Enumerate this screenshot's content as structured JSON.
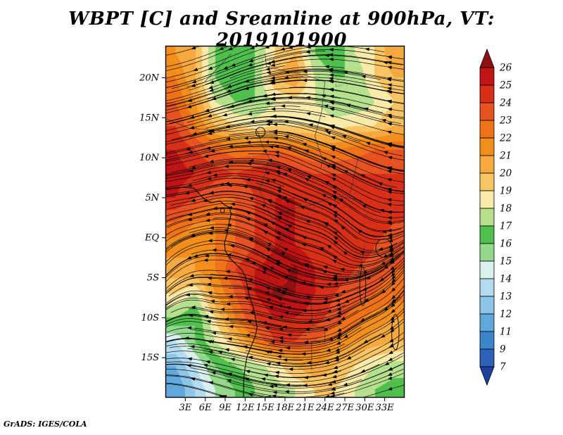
{
  "title": "WBPT [C] and Sreamline at 900hPa, VT: 2019101900",
  "credit": "GrADS: IGES/COLA",
  "chart_data": {
    "type": "heatmap",
    "title": "WBPT [C] and Sreamline at 900hPa, VT: 2019101900",
    "variable": "WBPT",
    "units": "C",
    "pressure_level": "900hPa",
    "valid_time": "2019101900",
    "lon_range": [
      0,
      36
    ],
    "lat_range": [
      -20,
      24
    ],
    "x_ticks": {
      "labels": [
        "3E",
        "6E",
        "9E",
        "12E",
        "15E",
        "18E",
        "21E",
        "24E",
        "27E",
        "30E",
        "33E"
      ],
      "lons": [
        3,
        6,
        9,
        12,
        15,
        18,
        21,
        24,
        27,
        30,
        33
      ]
    },
    "y_ticks": {
      "labels": [
        "20N",
        "15N",
        "10N",
        "5N",
        "EQ",
        "5S",
        "10S",
        "15S"
      ],
      "lats": [
        20,
        15,
        10,
        5,
        0,
        -5,
        -10,
        -15
      ]
    },
    "colorbar": {
      "levels": [
        7,
        9,
        11,
        12,
        13,
        14,
        15,
        16,
        17,
        18,
        19,
        20,
        21,
        22,
        23,
        24,
        25,
        26
      ],
      "colors": [
        "#1e3f9e",
        "#2c62b8",
        "#3c86cc",
        "#60a8dc",
        "#8ec6e8",
        "#b3dcf0",
        "#d9f0ee",
        "#93d88b",
        "#4fbf4d",
        "#b5e08e",
        "#f8eaa9",
        "#f9c464",
        "#f6a93e",
        "#f28e1c",
        "#ef7218",
        "#e65221",
        "#d83018",
        "#c01414",
        "#8f1010"
      ]
    },
    "field_grid": {
      "lon_centers": [
        1.5,
        4.5,
        7.5,
        10.5,
        13.5,
        16.5,
        19.5,
        22.5,
        25.5,
        28.5,
        31.5,
        34.5
      ],
      "lat_centers": [
        23,
        20,
        17,
        14,
        11,
        8,
        5,
        2,
        -1,
        -4,
        -7,
        -10,
        -13,
        -16,
        -19
      ],
      "values": [
        [
          21,
          20,
          17,
          16,
          17,
          19,
          20,
          17,
          16,
          18,
          19,
          21
        ],
        [
          22,
          20,
          17,
          16,
          17,
          20,
          21,
          18,
          17,
          17,
          19,
          20
        ],
        [
          23,
          21,
          18,
          17,
          17,
          18,
          18.5,
          18,
          17,
          17,
          18,
          19
        ],
        [
          24,
          22,
          20,
          19,
          18.5,
          19,
          19,
          19,
          18.5,
          19,
          19,
          20
        ],
        [
          25,
          24,
          23,
          22.5,
          22.5,
          23,
          22.5,
          22,
          22,
          22.5,
          23,
          23
        ],
        [
          25.5,
          25,
          24.5,
          24,
          24.5,
          25,
          24.5,
          24,
          24,
          24,
          24,
          24
        ],
        [
          25,
          24,
          23,
          23,
          24,
          25,
          25,
          24.5,
          24.5,
          25,
          24.5,
          24
        ],
        [
          23,
          22,
          22,
          23,
          24,
          25,
          25,
          25,
          25,
          25,
          24.5,
          24
        ],
        [
          21.5,
          21,
          22,
          23,
          24,
          25,
          25,
          24.5,
          24.5,
          25,
          24,
          23.5
        ],
        [
          20.5,
          21,
          22,
          24,
          25,
          25.5,
          26.2,
          25,
          24.5,
          24,
          23.5,
          23
        ],
        [
          19,
          18,
          21,
          23,
          25,
          26.2,
          26,
          25,
          24,
          23.5,
          23,
          22.5
        ],
        [
          17,
          16,
          19,
          22,
          24,
          25,
          25,
          24.5,
          23.5,
          22.5,
          21.5,
          21
        ],
        [
          14,
          16,
          18,
          19.5,
          22,
          24,
          24,
          23,
          22,
          21,
          20.5,
          20
        ],
        [
          12,
          14,
          16,
          17,
          17.5,
          18.5,
          20,
          21,
          20,
          19,
          18,
          17.5
        ],
        [
          11,
          13,
          15,
          16,
          17,
          17.5,
          18,
          19,
          19,
          18,
          17,
          16.5
        ]
      ]
    },
    "streamlines": {
      "seeds_x": 12,
      "seeds_y": 16,
      "step": 0.0035,
      "steps": 130,
      "vortices": [
        [
          0.68,
          0.52,
          2.0,
          0.015
        ],
        [
          0.48,
          0.28,
          1.2,
          0.008
        ],
        [
          0.22,
          0.74,
          -1.6,
          0.012
        ],
        [
          0.82,
          0.8,
          1.5,
          0.01
        ],
        [
          0.34,
          0.1,
          0.9,
          0.006
        ],
        [
          0.12,
          0.42,
          -1.0,
          0.01
        ]
      ]
    },
    "coastline": [
      [
        0,
        6.1
      ],
      [
        1.2,
        6.2
      ],
      [
        2.8,
        6.3
      ],
      [
        4.3,
        6.2
      ],
      [
        5.2,
        5.4
      ],
      [
        6.0,
        4.7
      ],
      [
        7.0,
        4.4
      ],
      [
        8.2,
        4.6
      ],
      [
        8.9,
        4.1
      ],
      [
        9.6,
        3.8
      ],
      [
        9.9,
        3.0
      ],
      [
        9.5,
        1.6
      ],
      [
        9.3,
        0.5
      ],
      [
        8.9,
        -0.6
      ],
      [
        9.0,
        -1.6
      ],
      [
        9.6,
        -2.5
      ],
      [
        10.6,
        -3.3
      ],
      [
        11.5,
        -4.0
      ],
      [
        12.1,
        -5.0
      ],
      [
        12.3,
        -6.0
      ],
      [
        12.6,
        -7.2
      ],
      [
        13.2,
        -8.6
      ],
      [
        13.5,
        -9.8
      ],
      [
        13.8,
        -11.2
      ],
      [
        13.5,
        -12.4
      ],
      [
        12.9,
        -13.6
      ],
      [
        12.3,
        -14.8
      ],
      [
        12.0,
        -16.2
      ],
      [
        11.8,
        -17.6
      ],
      [
        11.75,
        -20
      ]
    ],
    "borders": [
      [
        [
          0,
          14.9
        ],
        [
          3.6,
          13.7
        ],
        [
          6.5,
          13.5
        ],
        [
          10,
          13.3
        ],
        [
          13.6,
          13.6
        ],
        [
          14.0,
          13.0
        ]
      ],
      [
        [
          14.0,
          13.0
        ],
        [
          14.6,
          11.5
        ],
        [
          15.6,
          10.0
        ],
        [
          15.2,
          8.5
        ],
        [
          14.1,
          6.0
        ],
        [
          15.1,
          4.2
        ],
        [
          16.1,
          2.2
        ]
      ],
      [
        [
          24.0,
          19.5
        ],
        [
          23.5,
          15.7
        ],
        [
          22.5,
          12.7
        ],
        [
          23.6,
          9.8
        ],
        [
          23.4,
          8.7
        ]
      ],
      [
        [
          16.1,
          2.2
        ],
        [
          18.6,
          3.5
        ],
        [
          22.4,
          4.2
        ],
        [
          25.3,
          5.2
        ],
        [
          27.4,
          5.0
        ],
        [
          29.6,
          4.6
        ]
      ],
      [
        [
          16.2,
          -2.2
        ],
        [
          17.5,
          -0.6
        ],
        [
          18.1,
          1.2
        ],
        [
          18.6,
          3.5
        ]
      ],
      [
        [
          12.2,
          -5.8
        ],
        [
          16.3,
          -5.9
        ],
        [
          16.5,
          -7.1
        ],
        [
          19.4,
          -7.2
        ],
        [
          19.5,
          -7.9
        ],
        [
          21.8,
          -7.3
        ],
        [
          22.2,
          -11.0
        ],
        [
          24.0,
          -11.3
        ],
        [
          24.0,
          -13.0
        ],
        [
          22.0,
          -13.0
        ],
        [
          22.0,
          -16.5
        ]
      ],
      [
        [
          3.3,
          18.9
        ],
        [
          5.8,
          19.4
        ],
        [
          9.9,
          23.0
        ]
      ],
      [
        [
          15.0,
          23.0
        ],
        [
          15.2,
          21.4
        ],
        [
          21.5,
          20.2
        ],
        [
          24.0,
          19.5
        ]
      ],
      [
        [
          29.0,
          10.0
        ],
        [
          27.8,
          5.6
        ]
      ],
      [
        [
          30.0,
          -1.0
        ],
        [
          29.1,
          -4.5
        ]
      ]
    ],
    "lakes": [
      {
        "lon": 32.9,
        "lat": -1.3,
        "rlon": 1.25,
        "rlat": 1.15
      },
      {
        "lon": 29.7,
        "lat": -6.1,
        "rlon": 0.45,
        "rlat": 2.4
      },
      {
        "lon": 34.6,
        "lat": -11.8,
        "rlon": 0.55,
        "rlat": 2.2
      },
      {
        "lon": 14.3,
        "lat": 13.2,
        "rlon": 0.7,
        "rlat": 0.6
      },
      {
        "lon": 8.6,
        "lat": 3.4,
        "rlon": 0.3,
        "rlat": 0.3
      }
    ]
  }
}
